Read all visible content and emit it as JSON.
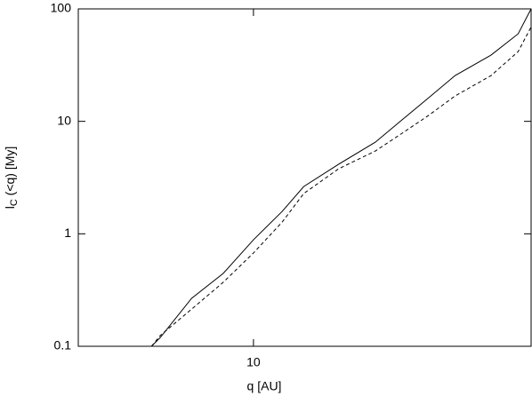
{
  "chart_data": {
    "type": "line",
    "xlabel": "q [AU]",
    "ylabel": {
      "main": "l",
      "sub": "C",
      "rest": " (<q) [My]"
    },
    "xlog": true,
    "ylog": true,
    "xlim": [
      5,
      30
    ],
    "ylim": [
      0.1,
      100
    ],
    "xticks": [
      10
    ],
    "yticks": [
      0.1,
      1,
      10,
      100
    ],
    "x": [
      6.68,
      6.92,
      7.83,
      8.87,
      10,
      11.2,
      12.2,
      14.0,
      16.2,
      18.0,
      20.0,
      22.2,
      25.6,
      28.5,
      30
    ],
    "series": [
      {
        "color": "#000000",
        "dash": false,
        "values": [
          0.1,
          0.12,
          0.267,
          0.444,
          0.885,
          1.58,
          2.63,
          4.15,
          6.53,
          10.3,
          16.2,
          25.5,
          38.8,
          60,
          100
        ]
      },
      {
        "color": "#000000",
        "dash": true,
        "values": [
          0.1,
          0.125,
          0.214,
          0.37,
          0.675,
          1.27,
          2.28,
          3.78,
          5.45,
          7.83,
          11.3,
          16.8,
          25.5,
          41.7,
          69
        ]
      }
    ]
  }
}
